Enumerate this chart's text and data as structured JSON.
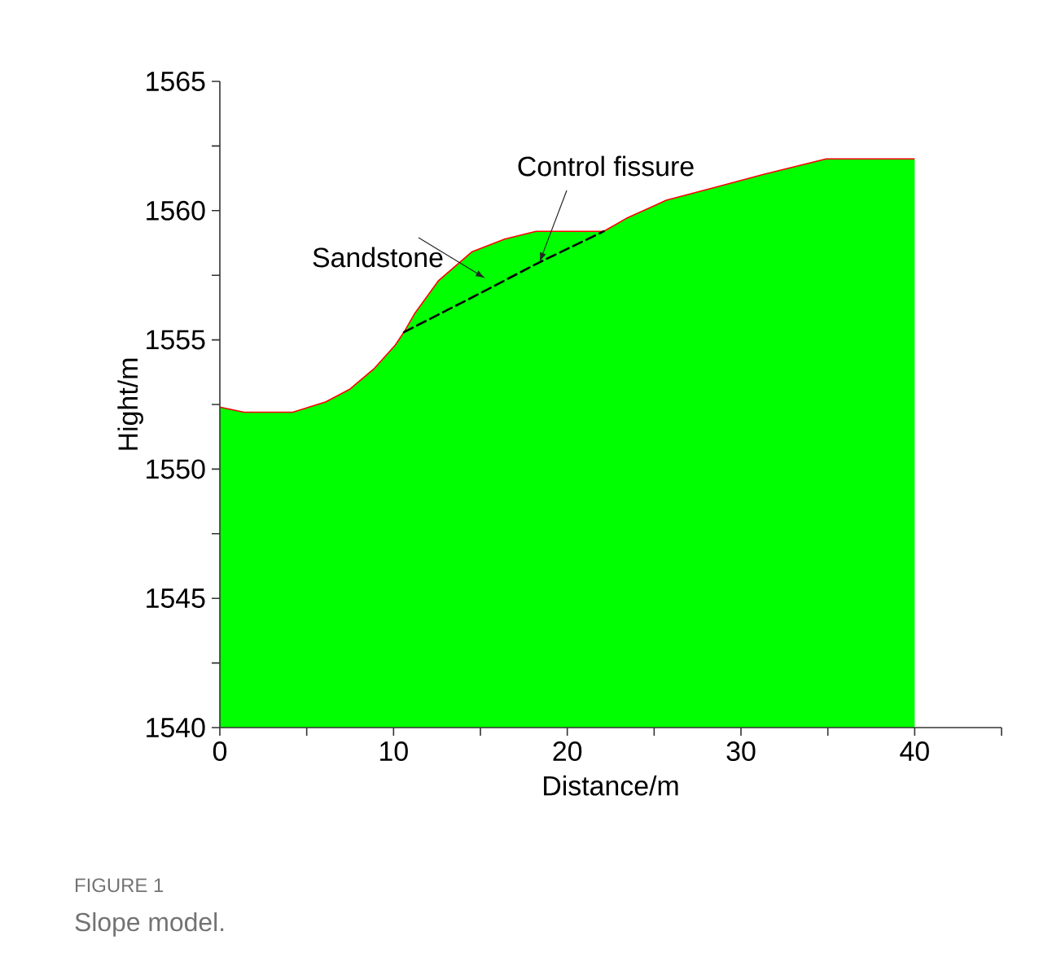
{
  "chart_data": {
    "type": "area",
    "xlabel": "Distance/m",
    "ylabel": "Hight/m",
    "xlim": [
      0,
      45
    ],
    "ylim": [
      1540,
      1565
    ],
    "xticks": [
      0,
      {
        "value": 5,
        "label": null
      },
      10,
      {
        "value": 15,
        "label": null
      },
      20,
      {
        "value": 25,
        "label": null
      },
      30,
      {
        "value": 35,
        "label": null
      },
      40,
      {
        "value": 45,
        "label": null
      }
    ],
    "yticks": [
      1540,
      {
        "value": 1542.5,
        "label": null
      },
      1545,
      {
        "value": 1547.5,
        "label": null
      },
      1550,
      {
        "value": 1552.5,
        "label": null
      },
      1555,
      {
        "value": 1557.5,
        "label": null
      },
      1560,
      {
        "value": 1562.5,
        "label": null
      },
      1565
    ],
    "grid": false,
    "series": [
      {
        "color": "#00ff00",
        "x": [
          0,
          1.4,
          4.2,
          6.1,
          7.5,
          8.9,
          10.1,
          10.6,
          11.2,
          12.6,
          14.5,
          16.4,
          18.2,
          22.1,
          23.4,
          25.7,
          28.5,
          31.3,
          34.9,
          40
        ],
        "values": [
          1552.4,
          1552.2,
          1552.2,
          1552.6,
          1553.1,
          1553.9,
          1554.8,
          1555.3,
          1556.0,
          1557.3,
          1558.4,
          1558.9,
          1559.2,
          1559.2,
          1559.7,
          1560.4,
          1560.9,
          1561.4,
          1562.0,
          1562.0
        ]
      },
      {
        "type": "line",
        "color": "#ff0000",
        "x": [
          0,
          1.4,
          4.2,
          6.1,
          7.5,
          8.9,
          10.1,
          10.6,
          11.2,
          12.6,
          14.5,
          16.4,
          18.2,
          22.1,
          23.4,
          25.7,
          28.5,
          31.3,
          34.9,
          40
        ],
        "values": [
          1552.4,
          1552.2,
          1552.2,
          1552.6,
          1553.1,
          1553.9,
          1554.8,
          1555.3,
          1556.0,
          1557.3,
          1558.4,
          1558.9,
          1559.2,
          1559.2,
          1559.7,
          1560.4,
          1560.9,
          1561.4,
          1562.0,
          1562.0
        ]
      },
      {
        "type": "line",
        "color": "#000000",
        "line_style": "dashed",
        "x": [
          10.6,
          14.4,
          18.4,
          22.1
        ],
        "values": [
          1555.3,
          1556.6,
          1558.0,
          1559.2
        ]
      }
    ],
    "annotations": [
      "Sandstone",
      {
        "text": "Control fissure",
        "x": 18.4,
        "y": 1558.0
      },
      "FIGURE 1",
      "Slope model."
    ]
  }
}
